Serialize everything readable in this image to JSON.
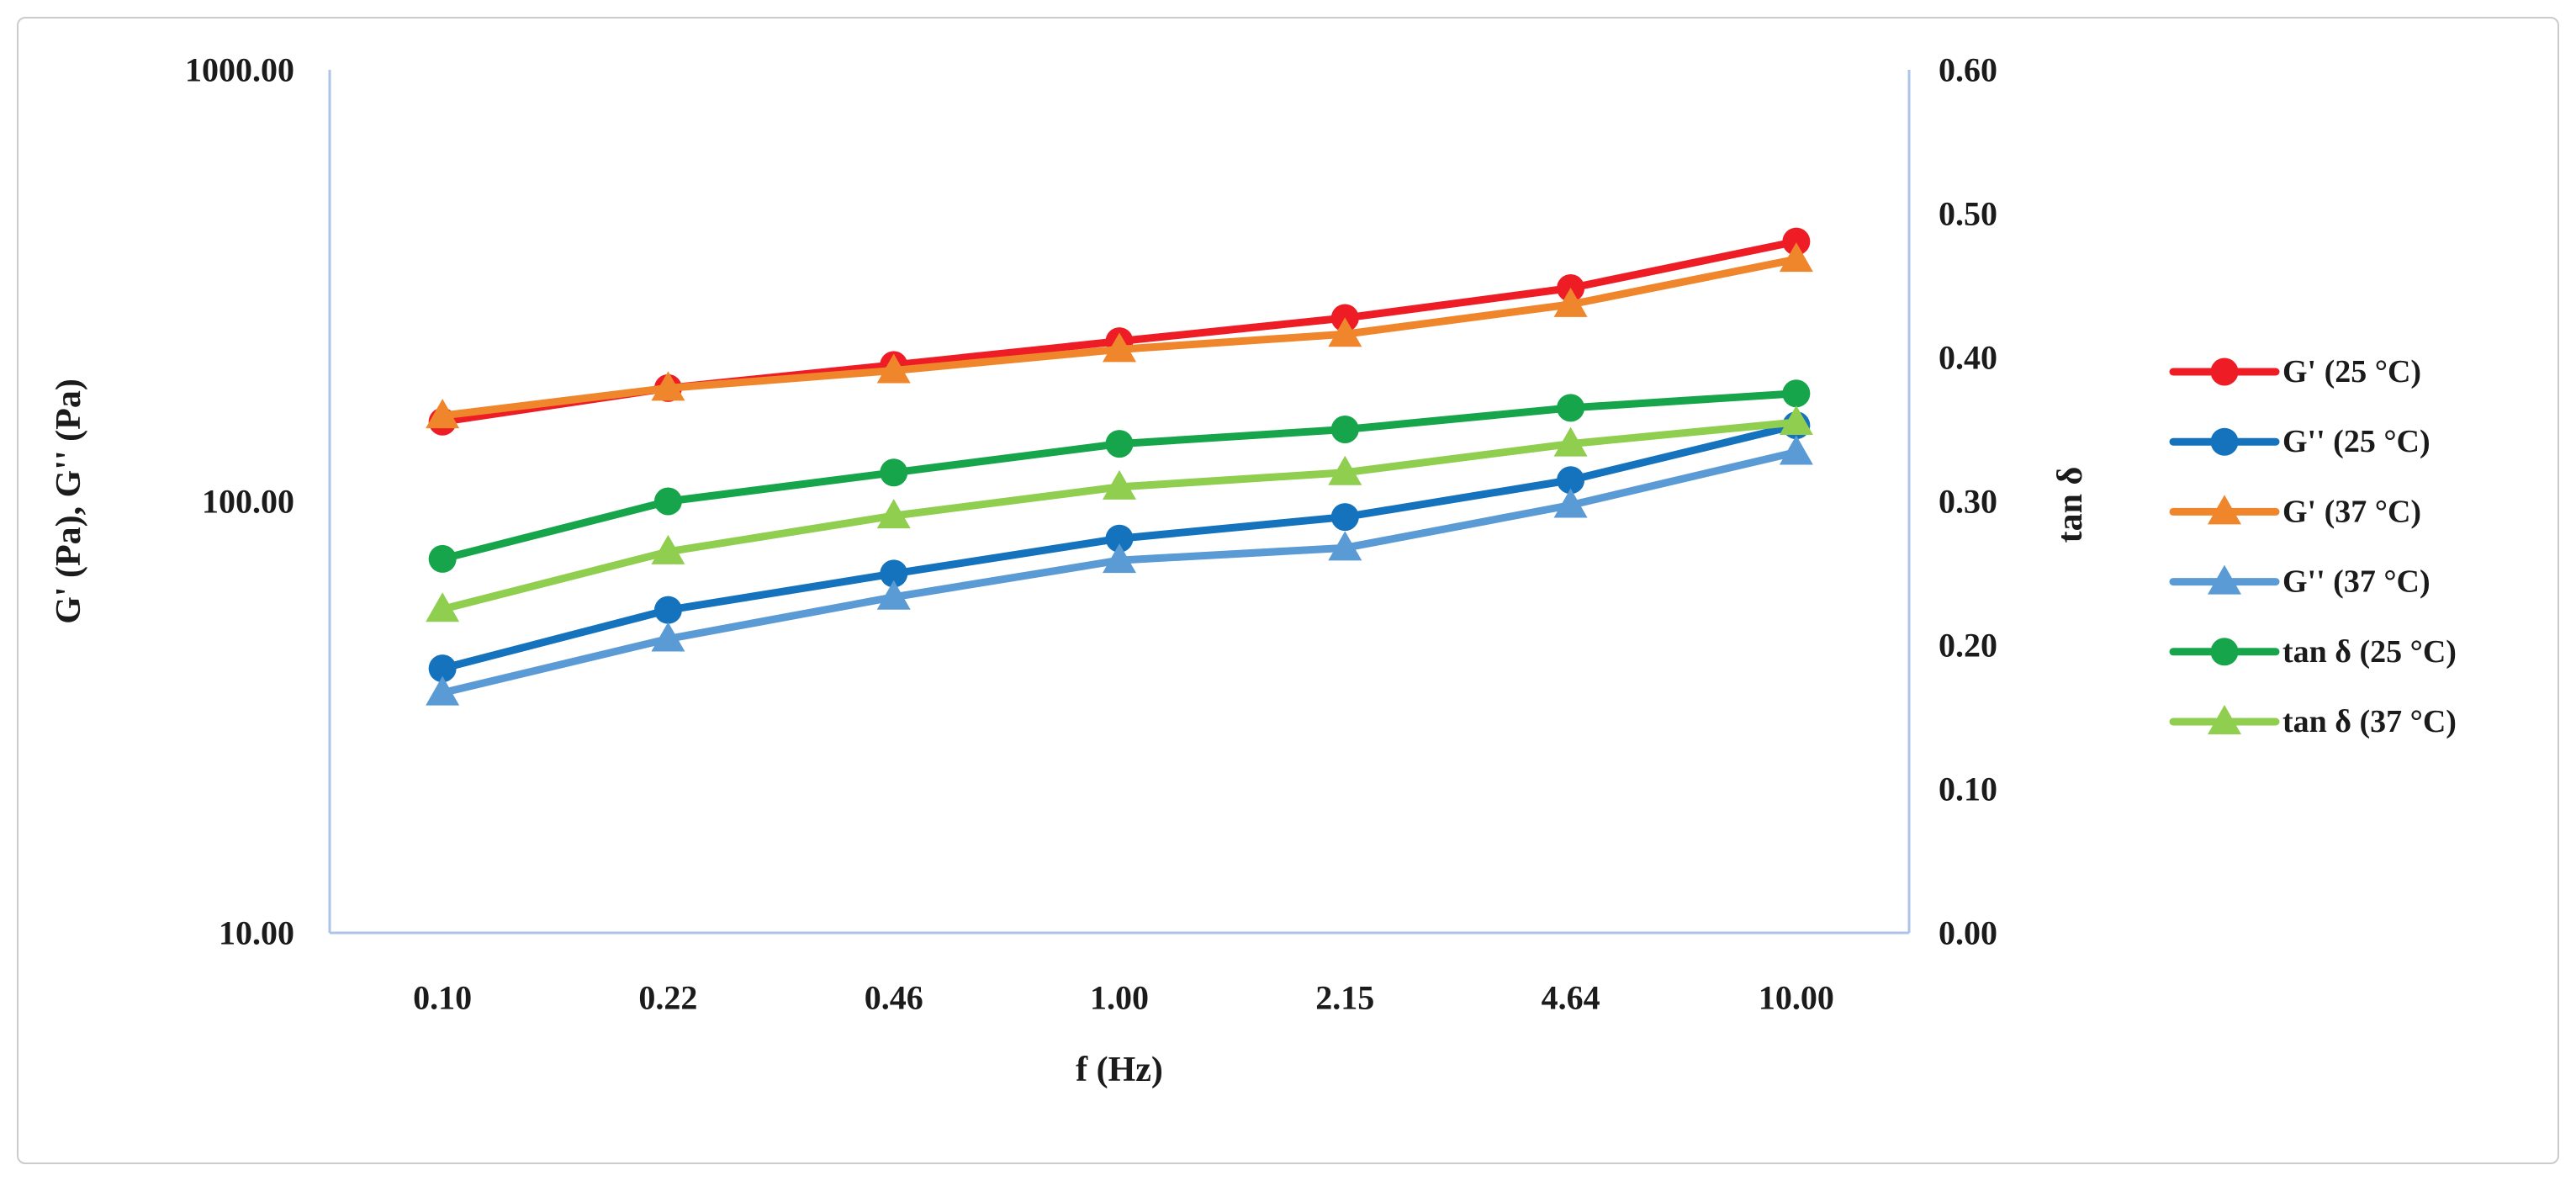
{
  "figure": {
    "background": "#ffffff",
    "border_color": "#cbcbcb",
    "axis_line_color": "#aec3e8"
  },
  "chart_data": {
    "type": "line",
    "xlabel": "f (Hz)",
    "ylabel_left": "G' (Pa), G'' (Pa)",
    "ylabel_right": "tan δ",
    "categories": [
      "0.10",
      "0.22",
      "0.46",
      "1.00",
      "2.15",
      "4.64",
      "10.00"
    ],
    "x_values_hz": [
      0.1,
      0.22,
      0.46,
      1.0,
      2.15,
      4.64,
      10.0
    ],
    "left_axis": {
      "scale": "log",
      "min": 10,
      "max": 1000,
      "ticks": [
        "1000.00",
        "100.00",
        "10.00"
      ],
      "tick_values": [
        1000,
        100,
        10
      ]
    },
    "right_axis": {
      "scale": "linear",
      "min": 0.0,
      "max": 0.6,
      "ticks": [
        "0.60",
        "0.50",
        "0.40",
        "0.30",
        "0.20",
        "0.10",
        "0.00"
      ],
      "tick_values": [
        0.6,
        0.5,
        0.4,
        0.3,
        0.2,
        0.1,
        0.0
      ]
    },
    "grid": false,
    "legend_position": "right",
    "series": [
      {
        "name": "G' (25 °C)",
        "axis": "left",
        "marker": "circle",
        "color": "#ee1c25",
        "values": [
          153,
          183,
          207,
          235,
          266,
          312,
          400
        ]
      },
      {
        "name": "G'' (25 °C)",
        "axis": "left",
        "marker": "circle",
        "color": "#1473bc",
        "values": [
          41,
          56,
          68,
          82,
          92,
          112,
          150
        ]
      },
      {
        "name": "G' (37 °C)",
        "axis": "left",
        "marker": "triangle",
        "color": "#f0862b",
        "values": [
          158,
          183,
          201,
          225,
          244,
          286,
          364
        ]
      },
      {
        "name": "G'' (37 °C)",
        "axis": "left",
        "marker": "triangle",
        "color": "#5b9bd5",
        "values": [
          36,
          48,
          60,
          73,
          78,
          98,
          130
        ]
      },
      {
        "name": "tan δ (25 °C)",
        "axis": "right",
        "marker": "circle",
        "color": "#17a54b",
        "values": [
          0.26,
          0.3,
          0.32,
          0.34,
          0.35,
          0.365,
          0.375
        ]
      },
      {
        "name": "tan δ (37 °C)",
        "axis": "right",
        "marker": "triangle",
        "color": "#8fce4e",
        "values": [
          0.225,
          0.265,
          0.29,
          0.31,
          0.32,
          0.34,
          0.355
        ]
      }
    ]
  }
}
